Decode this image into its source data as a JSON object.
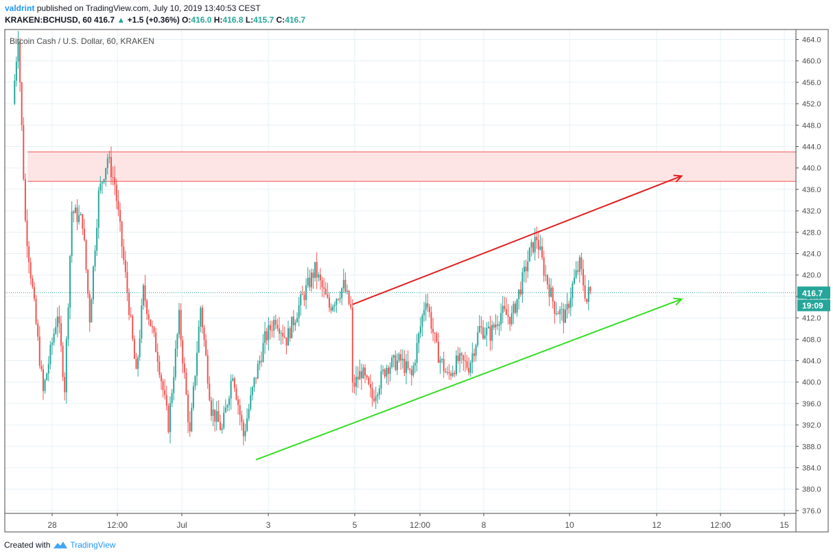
{
  "header": {
    "user": "valdrint",
    "published_text": "published on TradingView.com, July 10, 2019 13:40:53 CEST",
    "symbol": "KRAKEN:BCHUSD, 60",
    "last_price": "416.7",
    "change": "+1.5 (+0.36%)",
    "open_label": "O:",
    "open": "416.0",
    "high_label": "H:",
    "high": "416.8",
    "low_label": "L:",
    "low": "415.7",
    "close_label": "C:",
    "close": "416.7"
  },
  "footer": {
    "created_with": "Created with",
    "brand": "TradingView"
  },
  "colors": {
    "up": "#26a69a",
    "down": "#ef5350",
    "grid": "#e6f0f5",
    "zone_fill": "#fde5e5",
    "zone_line": "#ef5350",
    "red_trend": "#e01e1e",
    "green_trend": "#33dd22",
    "price_tag": "#26a69a",
    "timer_tag": "#26a69a"
  },
  "chart_data": {
    "type": "candlestick",
    "title": "Bitcoin Cash / U.S. Dollar, 60, KRAKEN",
    "ylim": [
      376,
      465
    ],
    "x_ticks": [
      "28",
      "12:00",
      "Jul",
      "3",
      "5",
      "12:00",
      "8",
      "10",
      "12",
      "12:00",
      "15"
    ],
    "y_ticks": [
      "464.0",
      "460.0",
      "456.0",
      "452.0",
      "448.0",
      "444.0",
      "440.0",
      "436.0",
      "432.0",
      "428.0",
      "424.0",
      "420.0",
      "416.0",
      "412.0",
      "408.0",
      "404.0",
      "400.0",
      "396.0",
      "392.0",
      "388.0",
      "384.0",
      "380.0",
      "376.0"
    ],
    "current_price": 416.7,
    "current_price_label": "416.7",
    "timer_label": "19:09",
    "resistance_zone": [
      437.5,
      443.0
    ],
    "red_trendline": {
      "from": [
        "Jul 5 00:00",
        414.5
      ],
      "to": [
        "Jul 12 16:00",
        438.5
      ]
    },
    "green_trendline": {
      "from": [
        "Jul 2 18:00",
        385.5
      ],
      "to": [
        "Jul 12 16:00",
        415.5
      ]
    },
    "price_path_key_points": [
      [
        "Jun 27 03:00",
        452
      ],
      [
        "Jun 27 06:00",
        465
      ],
      [
        "Jun 27 10:00",
        430
      ],
      [
        "Jun 27 20:00",
        398
      ],
      [
        "Jun 28 04:00",
        413
      ],
      [
        "Jun 28 08:00",
        399
      ],
      [
        "Jun 28 12:00",
        432
      ],
      [
        "Jun 28 18:00",
        430
      ],
      [
        "Jun 28 22:00",
        412
      ],
      [
        "Jun 29 03:00",
        435
      ],
      [
        "Jun 29 08:00",
        442
      ],
      [
        "Jun 29 12:00",
        437
      ],
      [
        "Jun 29 20:00",
        414
      ],
      [
        "Jun 30 00:00",
        401
      ],
      [
        "Jun 30 04:00",
        417
      ],
      [
        "Jun 30 12:00",
        405
      ],
      [
        "Jun 30 18:00",
        392
      ],
      [
        "Jul 1 00:00",
        412
      ],
      [
        "Jul 1 06:00",
        390
      ],
      [
        "Jul 1 12:00",
        414
      ],
      [
        "Jul 1 18:00",
        395
      ],
      [
        "Jul 2 00:00",
        391
      ],
      [
        "Jul 2 06:00",
        402
      ],
      [
        "Jul 2 12:00",
        390
      ],
      [
        "Jul 2 18:00",
        400
      ],
      [
        "Jul 3 00:00",
        408
      ],
      [
        "Jul 3 06:00",
        412
      ],
      [
        "Jul 3 12:00",
        408
      ],
      [
        "Jul 3 20:00",
        415
      ],
      [
        "Jul 4 04:00",
        421
      ],
      [
        "Jul 4 12:00",
        414
      ],
      [
        "Jul 4 20:00",
        418
      ],
      [
        "Jul 5 00:00",
        413.5
      ],
      [
        "Jul 5 01:00",
        399
      ],
      [
        "Jul 5 06:00",
        402
      ],
      [
        "Jul 5 12:00",
        397
      ],
      [
        "Jul 5 20:00",
        403
      ],
      [
        "Jul 6 04:00",
        404
      ],
      [
        "Jul 6 10:00",
        401
      ],
      [
        "Jul 6 18:00",
        416
      ],
      [
        "Jul 7 00:00",
        406
      ],
      [
        "Jul 7 06:00",
        401
      ],
      [
        "Jul 7 12:00",
        404
      ],
      [
        "Jul 7 18:00",
        403
      ],
      [
        "Jul 8 00:00",
        410
      ],
      [
        "Jul 8 06:00",
        409
      ],
      [
        "Jul 8 12:00",
        413
      ],
      [
        "Jul 8 18:00",
        412
      ],
      [
        "Jul 9 00:00",
        419
      ],
      [
        "Jul 9 04:00",
        424
      ],
      [
        "Jul 9 08:00",
        427
      ],
      [
        "Jul 9 12:00",
        421
      ],
      [
        "Jul 9 18:00",
        414
      ],
      [
        "Jul 10 00:00",
        412
      ],
      [
        "Jul 10 04:00",
        418
      ],
      [
        "Jul 10 08:00",
        422
      ],
      [
        "Jul 10 12:00",
        415
      ],
      [
        "Jul 10 13:00",
        416.7
      ]
    ]
  }
}
